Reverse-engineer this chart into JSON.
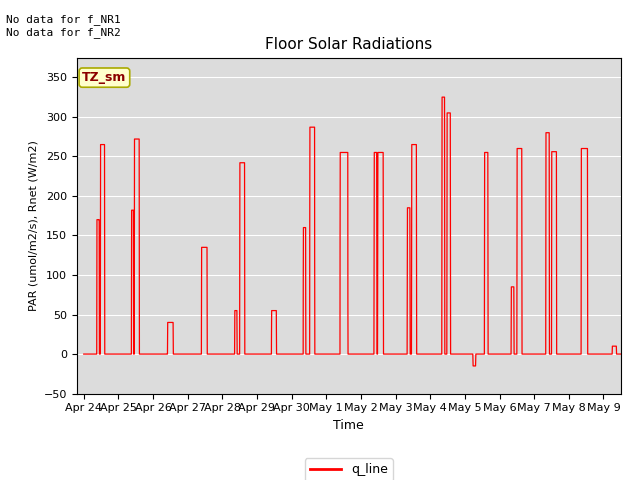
{
  "title": "Floor Solar Radiations",
  "xlabel": "Time",
  "ylabel": "PAR (umol/m2/s), Rnet (W/m2)",
  "ylim": [
    -50,
    375
  ],
  "yticks": [
    -50,
    0,
    50,
    100,
    150,
    200,
    250,
    300,
    350
  ],
  "background_color": "#dcdcdc",
  "line_color": "red",
  "legend_label": "q_line",
  "annotation_top_left": "No data for f_NR1\nNo data for f_NR2",
  "box_label": "TZ_sm",
  "box_facecolor": "#ffffcc",
  "box_edgecolor": "#aaaa00",
  "x_tick_labels": [
    "Apr 24",
    "Apr 25",
    "Apr 26",
    "Apr 27",
    "Apr 28",
    "Apr 29",
    "Apr 30",
    "May 1",
    "May 2",
    "May 3",
    "May 4",
    "May 5",
    "May 6",
    "May 7",
    "May 8",
    "May 9"
  ],
  "num_days": 16
}
